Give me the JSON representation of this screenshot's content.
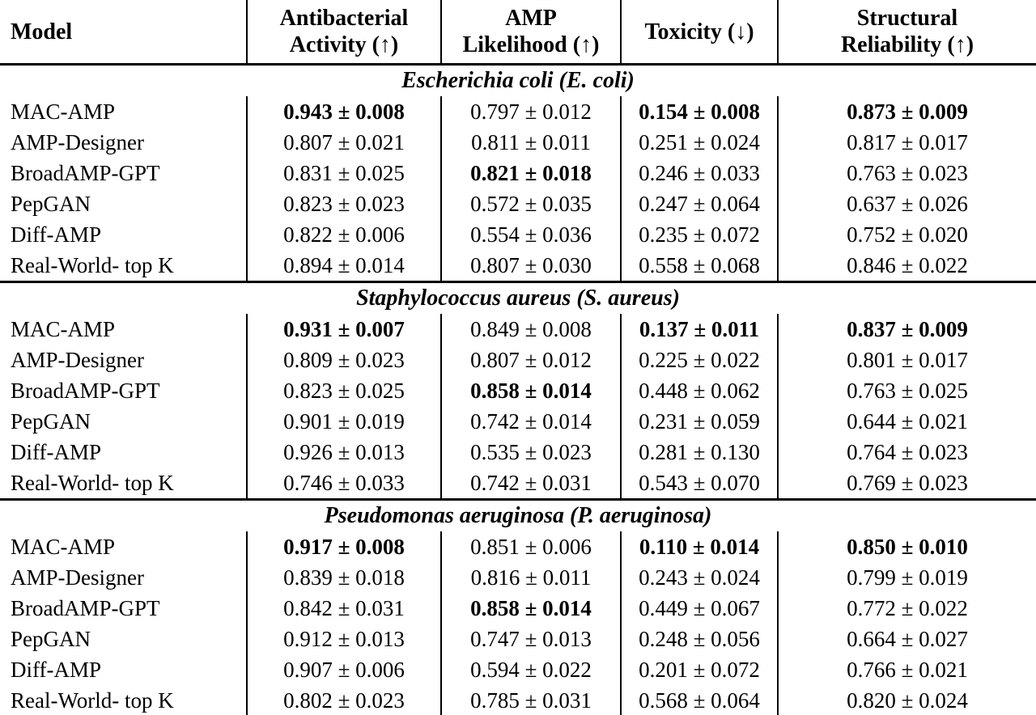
{
  "table": {
    "columns": [
      {
        "key": "model",
        "label": "Model"
      },
      {
        "key": "antibacterial_activity",
        "label": "Antibacterial\nActivity (↑)"
      },
      {
        "key": "amp_likelihood",
        "label": "AMP\nLikelihood (↑)"
      },
      {
        "key": "toxicity",
        "label": "Toxicity (↓)"
      },
      {
        "key": "structural_reliability",
        "label": "Structural\nReliability (↑)"
      }
    ],
    "sections": [
      {
        "title": "Escherichia coli (E. coli)",
        "rows": [
          {
            "model": "MAC-AMP",
            "values": [
              "0.943 ± 0.008",
              "0.797 ± 0.012",
              "0.154 ± 0.008",
              "0.873 ± 0.009"
            ],
            "bold": [
              true,
              false,
              true,
              true
            ]
          },
          {
            "model": "AMP-Designer",
            "values": [
              "0.807 ± 0.021",
              "0.811 ± 0.011",
              "0.251 ± 0.024",
              "0.817 ± 0.017"
            ],
            "bold": [
              false,
              false,
              false,
              false
            ]
          },
          {
            "model": "BroadAMP-GPT",
            "values": [
              "0.831 ± 0.025",
              "0.821 ± 0.018",
              "0.246 ± 0.033",
              "0.763 ± 0.023"
            ],
            "bold": [
              false,
              true,
              false,
              false
            ]
          },
          {
            "model": "PepGAN",
            "values": [
              "0.823 ± 0.023",
              "0.572 ± 0.035",
              "0.247 ± 0.064",
              "0.637 ± 0.026"
            ],
            "bold": [
              false,
              false,
              false,
              false
            ]
          },
          {
            "model": "Diff-AMP",
            "values": [
              "0.822 ± 0.006",
              "0.554 ± 0.036",
              "0.235 ± 0.072",
              "0.752 ± 0.020"
            ],
            "bold": [
              false,
              false,
              false,
              false
            ]
          },
          {
            "model": "Real-World- top K",
            "values": [
              "0.894 ± 0.014",
              "0.807 ± 0.030",
              "0.558 ± 0.068",
              "0.846 ± 0.022"
            ],
            "bold": [
              false,
              false,
              false,
              false
            ]
          }
        ]
      },
      {
        "title": "Staphylococcus aureus (S. aureus)",
        "rows": [
          {
            "model": "MAC-AMP",
            "values": [
              "0.931 ± 0.007",
              "0.849 ± 0.008",
              "0.137 ± 0.011",
              "0.837 ± 0.009"
            ],
            "bold": [
              true,
              false,
              true,
              true
            ]
          },
          {
            "model": "AMP-Designer",
            "values": [
              "0.809 ± 0.023",
              "0.807 ± 0.012",
              "0.225 ± 0.022",
              "0.801 ± 0.017"
            ],
            "bold": [
              false,
              false,
              false,
              false
            ]
          },
          {
            "model": "BroadAMP-GPT",
            "values": [
              "0.823 ± 0.025",
              "0.858 ± 0.014",
              "0.448 ± 0.062",
              "0.763 ± 0.025"
            ],
            "bold": [
              false,
              true,
              false,
              false
            ]
          },
          {
            "model": "PepGAN",
            "values": [
              "0.901 ± 0.019",
              "0.742 ± 0.014",
              "0.231 ± 0.059",
              "0.644 ± 0.021"
            ],
            "bold": [
              false,
              false,
              false,
              false
            ]
          },
          {
            "model": "Diff-AMP",
            "values": [
              "0.926 ± 0.013",
              "0.535 ± 0.023",
              "0.281 ± 0.130",
              "0.764 ± 0.023"
            ],
            "bold": [
              false,
              false,
              false,
              false
            ]
          },
          {
            "model": "Real-World- top K",
            "values": [
              "0.746 ± 0.033",
              "0.742 ± 0.031",
              "0.543 ± 0.070",
              "0.769 ± 0.023"
            ],
            "bold": [
              false,
              false,
              false,
              false
            ]
          }
        ]
      },
      {
        "title": "Pseudomonas aeruginosa (P. aeruginosa)",
        "rows": [
          {
            "model": "MAC-AMP",
            "values": [
              "0.917 ± 0.008",
              "0.851 ± 0.006",
              "0.110 ± 0.014",
              "0.850 ± 0.010"
            ],
            "bold": [
              true,
              false,
              true,
              true
            ]
          },
          {
            "model": "AMP-Designer",
            "values": [
              "0.839 ± 0.018",
              "0.816 ± 0.011",
              "0.243 ± 0.024",
              "0.799 ± 0.019"
            ],
            "bold": [
              false,
              false,
              false,
              false
            ]
          },
          {
            "model": "BroadAMP-GPT",
            "values": [
              "0.842 ± 0.031",
              "0.858 ± 0.014",
              "0.449 ± 0.067",
              "0.772 ± 0.022"
            ],
            "bold": [
              false,
              true,
              false,
              false
            ]
          },
          {
            "model": "PepGAN",
            "values": [
              "0.912 ± 0.013",
              "0.747 ± 0.013",
              "0.248 ± 0.056",
              "0.664 ± 0.027"
            ],
            "bold": [
              false,
              false,
              false,
              false
            ]
          },
          {
            "model": "Diff-AMP",
            "values": [
              "0.907 ± 0.006",
              "0.594 ± 0.022",
              "0.201 ± 0.072",
              "0.766 ± 0.021"
            ],
            "bold": [
              false,
              false,
              false,
              false
            ]
          },
          {
            "model": "Real-World- top K",
            "values": [
              "0.802 ± 0.023",
              "0.785 ± 0.031",
              "0.568 ± 0.064",
              "0.820 ± 0.024"
            ],
            "bold": [
              false,
              false,
              false,
              false
            ]
          }
        ]
      }
    ],
    "colors": {
      "text": "#000000",
      "background": "#ffffff",
      "rule": "#000000"
    }
  }
}
